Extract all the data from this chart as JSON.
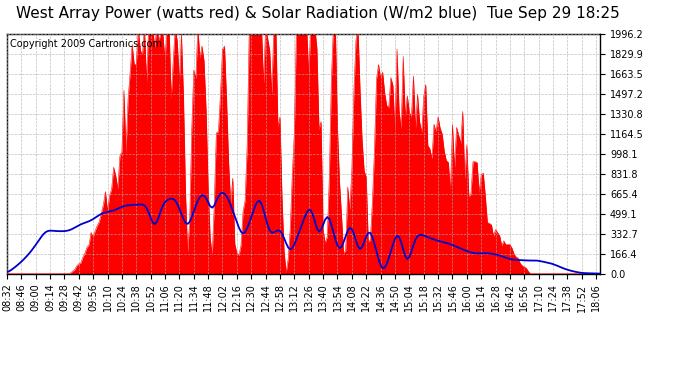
{
  "title": "West Array Power (watts red) & Solar Radiation (W/m2 blue)  Tue Sep 29 18:25",
  "copyright": "Copyright 2009 Cartronics.com",
  "yticks": [
    0.0,
    166.4,
    332.7,
    499.1,
    665.4,
    831.8,
    998.1,
    1164.5,
    1330.8,
    1497.2,
    1663.5,
    1829.9,
    1996.2
  ],
  "ymax": 1996.2,
  "bg_color": "#ffffff",
  "plot_bg_color": "#ffffff",
  "grid_color": "#b0b0b0",
  "red_color": "#ff0000",
  "blue_color": "#0000cc",
  "title_fontsize": 11,
  "copyright_fontsize": 7,
  "tick_fontsize": 7
}
